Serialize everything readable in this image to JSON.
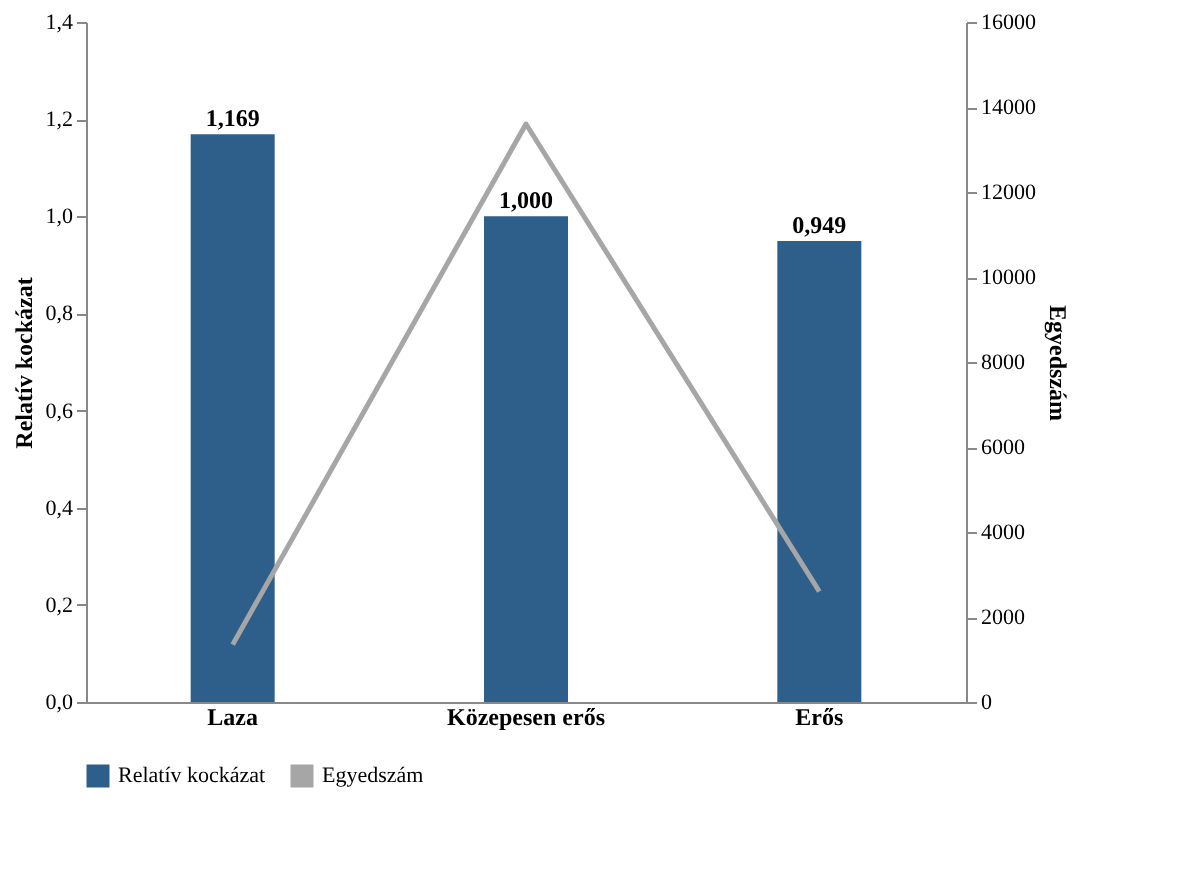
{
  "chart_data": {
    "type": "bar",
    "categories": [
      "Laza",
      "Közepesen erős",
      "Erős"
    ],
    "ylabel": "Relatív kockázat",
    "y2label": "Egyedszám",
    "series": [
      {
        "name": "Relatív kockázat",
        "color": "#2e5f8a",
        "values": [
          1.169,
          1.0,
          0.949
        ],
        "value_labels": [
          "1,169",
          "1,000",
          "0,949"
        ]
      },
      {
        "name": "Egyedszám",
        "type": "line",
        "axis": "y2",
        "color": "#a6a6a6",
        "values": [
          1350,
          13600,
          2600
        ]
      }
    ],
    "ylim": [
      0,
      1.4
    ],
    "yticks": [
      {
        "value": 0,
        "label": "0,0"
      },
      {
        "value": 0.2,
        "label": "0,2"
      },
      {
        "value": 0.4,
        "label": "0,4"
      },
      {
        "value": 0.6,
        "label": "0,6"
      },
      {
        "value": 0.8,
        "label": "0,8"
      },
      {
        "value": 1.0,
        "label": "1,0"
      },
      {
        "value": 1.2,
        "label": "1,2"
      },
      {
        "value": 1.4,
        "label": "1,4"
      }
    ],
    "y2lim": [
      0,
      16000
    ],
    "y2ticks": [
      0,
      2000,
      4000,
      6000,
      8000,
      10000,
      12000,
      14000,
      16000
    ],
    "legend": "bottom",
    "grid": false,
    "marker": "none",
    "line_style": "solid"
  }
}
